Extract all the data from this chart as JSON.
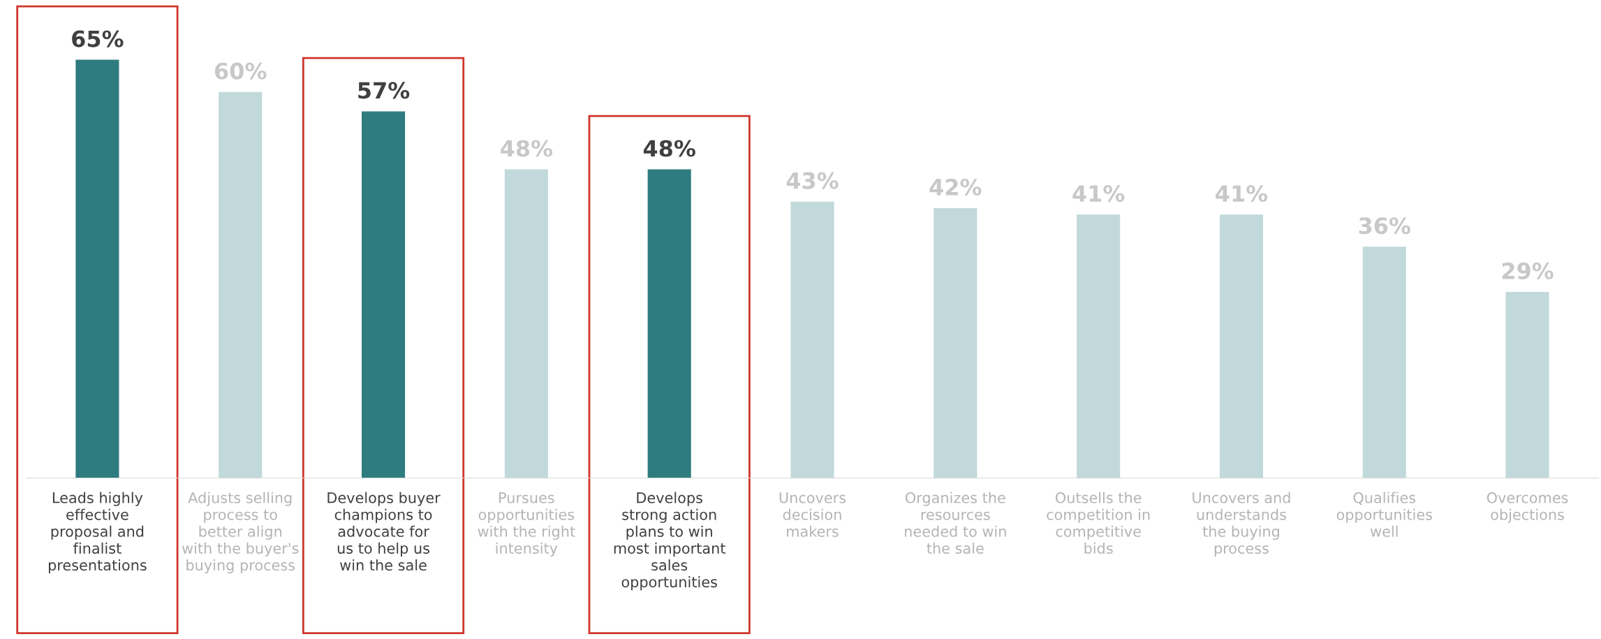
{
  "chart_data": {
    "type": "bar",
    "categories": [
      "Leads highly\neffective\nproposal and\nfinalist\npresentations",
      "Adjusts selling\nprocess to\nbetter align\nwith the buyer's\nbuying process",
      "Develops buyer\nchampions to\nadvocate for\nus to help us\nwin the sale",
      "Pursues\nopportunities\nwith the right\nintensity",
      "Develops\nstrong action\nplans to win\nmost important\nsales\nopportunities",
      "Uncovers\ndecision\nmakers",
      "Organizes the\nresources\nneeded to win\nthe sale",
      "Outsells the\ncompetition in\ncompetitive\nbids",
      "Uncovers and\nunderstands\nthe buying\nprocess",
      "Qualifies\nopportunities\nwell",
      "Overcomes\nobjections"
    ],
    "values": [
      65,
      60,
      57,
      48,
      48,
      43,
      42,
      41,
      41,
      36,
      29
    ],
    "colors": [
      "#2f7c80",
      "#c1d9db",
      "#2f7c80",
      "#c1d9db",
      "#2f7c80",
      "#c1d9db",
      "#c1d9db",
      "#c1d9db",
      "#c1d9db",
      "#c1d9db",
      "#c1d9db"
    ],
    "value_labels": [
      "65%",
      "60%",
      "57%",
      "48%",
      "48%",
      "43%",
      "42%",
      "41%",
      "41%",
      "36%",
      "29%"
    ],
    "tick_labels": "x",
    "grid": false,
    "legend": false
  }
}
